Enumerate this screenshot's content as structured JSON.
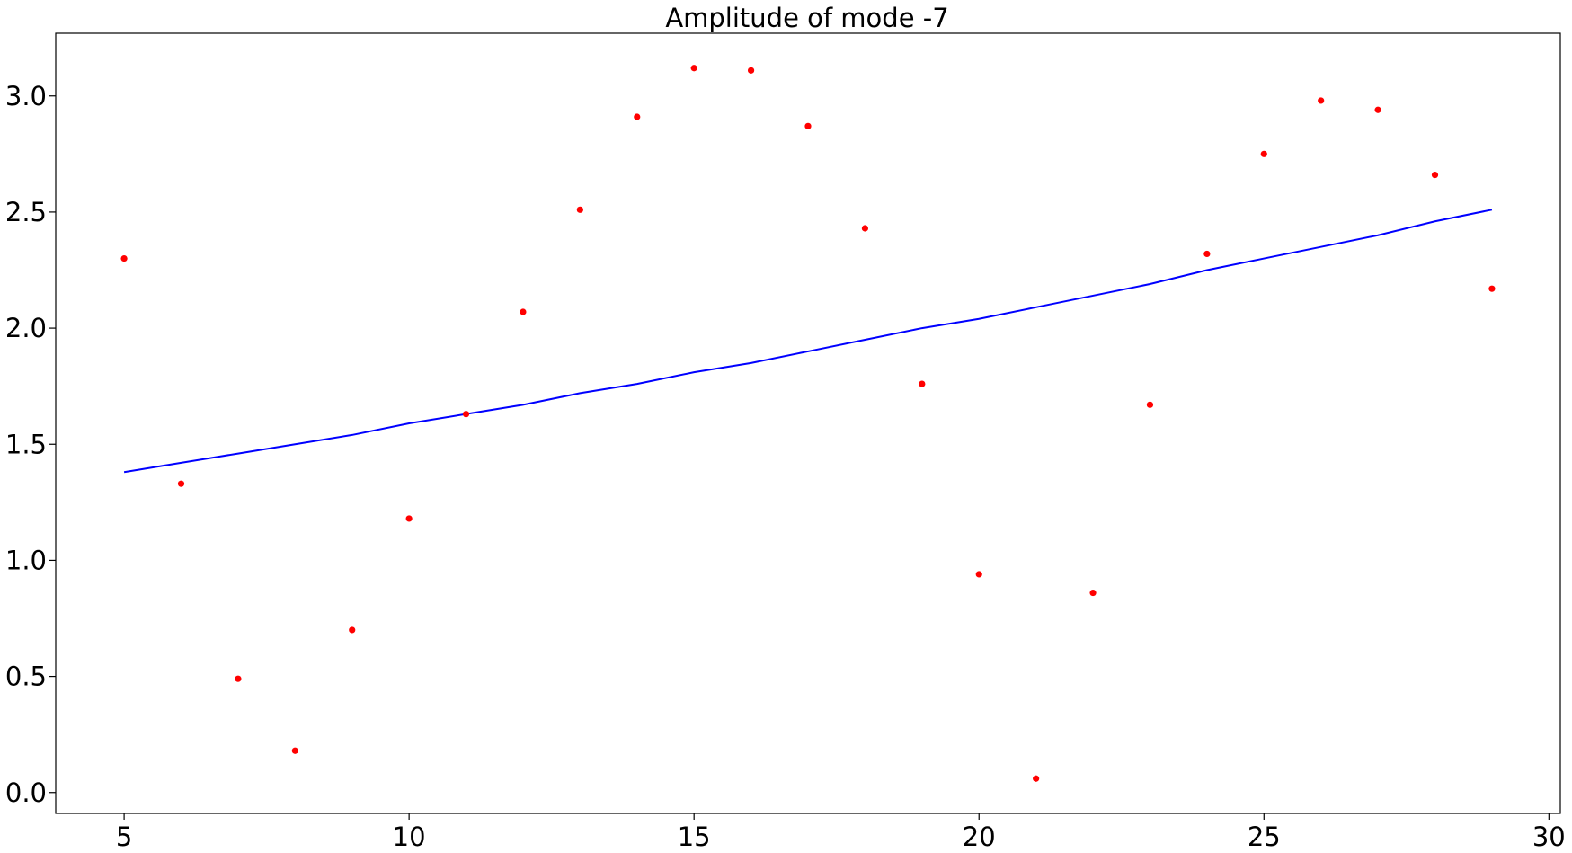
{
  "chart_data": {
    "type": "scatter",
    "title": "Amplitude of mode -7",
    "xlabel": "",
    "ylabel": "",
    "xlim": [
      3.8,
      30.2
    ],
    "ylim": [
      -0.09,
      3.27
    ],
    "xticks": [
      5,
      10,
      15,
      20,
      25,
      30
    ],
    "xtick_labels": [
      "5",
      "10",
      "15",
      "20",
      "25",
      "30"
    ],
    "yticks": [
      0.0,
      0.5,
      1.0,
      1.5,
      2.0,
      2.5,
      3.0
    ],
    "ytick_labels": [
      "0.0",
      "0.5",
      "1.0",
      "1.5",
      "2.0",
      "2.5",
      "3.0"
    ],
    "grid": false,
    "series": [
      {
        "kind": "scatter",
        "color": "#ff0000",
        "x": [
          5,
          6,
          7,
          8,
          9,
          10,
          11,
          12,
          13,
          14,
          15,
          16,
          17,
          18,
          19,
          20,
          21,
          22,
          23,
          24,
          25,
          26,
          27,
          28,
          29
        ],
        "y": [
          2.3,
          1.33,
          0.49,
          0.18,
          0.7,
          1.18,
          1.63,
          2.07,
          2.51,
          2.91,
          3.12,
          3.11,
          2.87,
          2.43,
          1.76,
          0.94,
          0.06,
          0.86,
          1.67,
          2.32,
          2.75,
          2.98,
          2.94,
          2.66,
          2.17
        ]
      },
      {
        "kind": "line",
        "color": "#0000ff",
        "x": [
          5,
          6,
          7,
          8,
          9,
          10,
          11,
          12,
          13,
          14,
          15,
          16,
          17,
          18,
          19,
          20,
          21,
          22,
          23,
          24,
          25,
          26,
          27,
          28,
          29
        ],
        "y": [
          1.38,
          1.42,
          1.46,
          1.5,
          1.54,
          1.59,
          1.63,
          1.67,
          1.72,
          1.76,
          1.81,
          1.85,
          1.9,
          1.95,
          2.0,
          2.04,
          2.09,
          2.14,
          2.19,
          2.25,
          2.3,
          2.35,
          2.4,
          2.46,
          2.51
        ]
      }
    ]
  }
}
